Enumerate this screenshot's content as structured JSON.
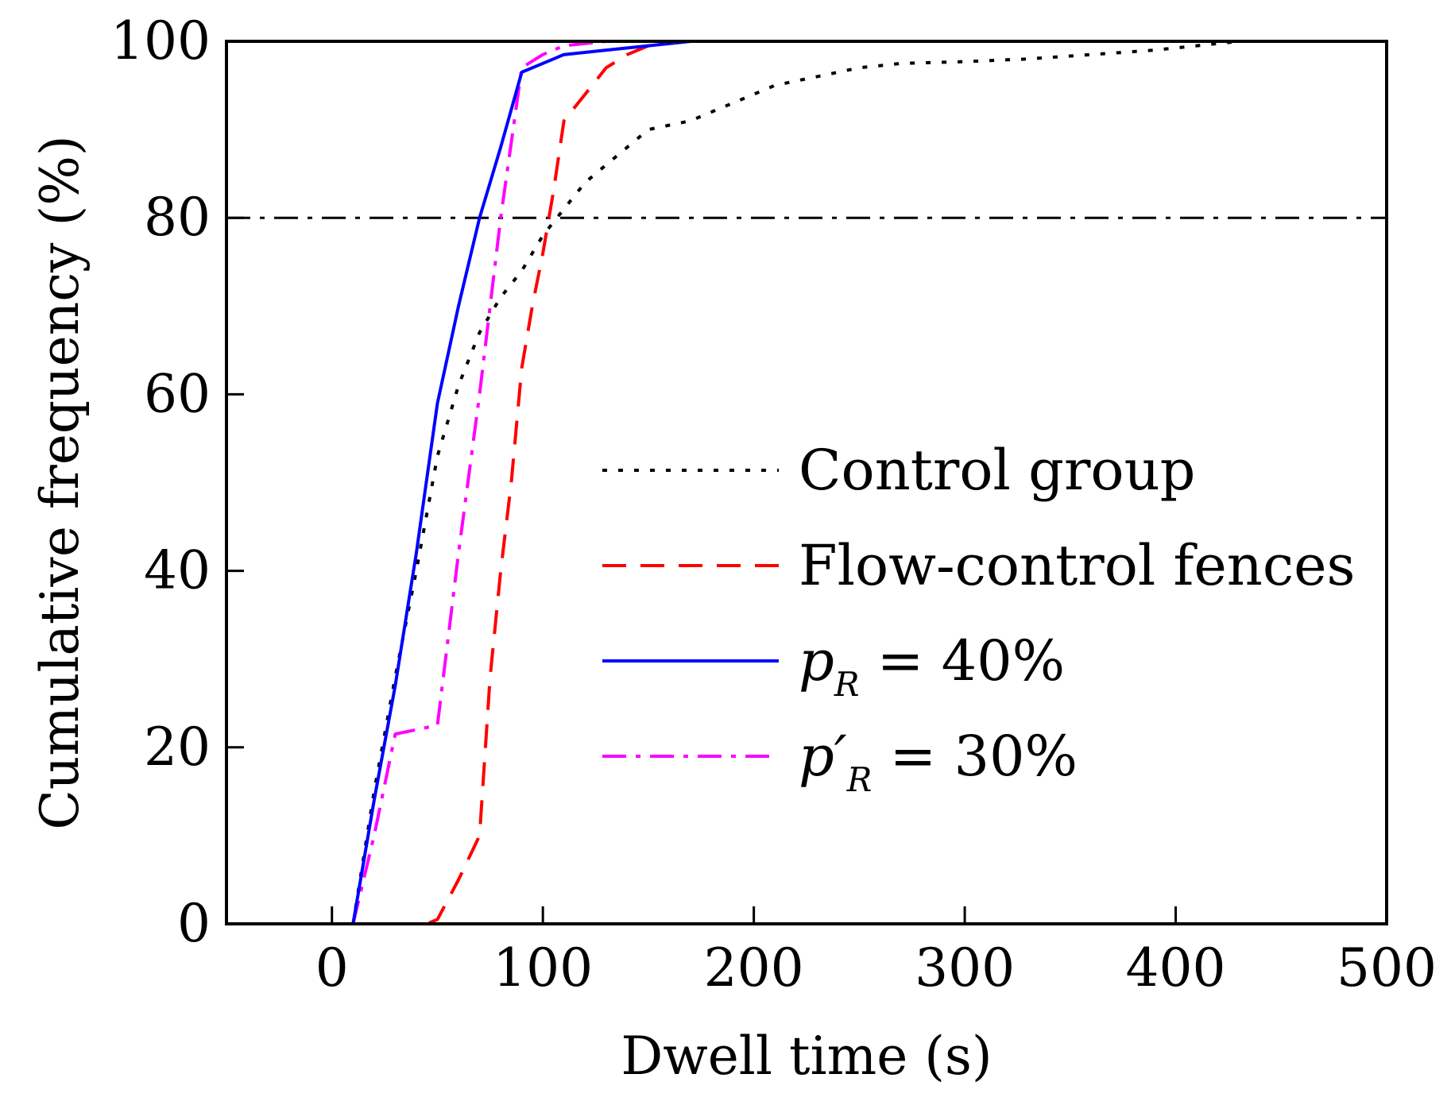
{
  "chart_data": {
    "type": "line",
    "title": "",
    "xlabel": "Dwell time (s)",
    "ylabel": "Cumulative frequency (%)",
    "xlim": [
      -50,
      500
    ],
    "ylim": [
      0,
      100
    ],
    "xticks": [
      0,
      100,
      200,
      300,
      400,
      500
    ],
    "yticks": [
      0,
      20,
      40,
      60,
      80,
      100
    ],
    "grid": false,
    "legend_position": "center-right",
    "reference_line": {
      "y": 80,
      "style": "dash-dot",
      "color": "#000000"
    },
    "series": [
      {
        "name": "Control group",
        "style": "dotted",
        "color": "#000000",
        "x": [
          10,
          20,
          30,
          40,
          50,
          60,
          70,
          80,
          90,
          100,
          110,
          120,
          130,
          140,
          150,
          170,
          190,
          210,
          230,
          250,
          270,
          300,
          330,
          360,
          390,
          410,
          430
        ],
        "y": [
          0,
          15,
          28,
          40,
          53,
          61,
          67,
          71,
          74,
          78,
          81,
          84,
          86,
          88,
          90,
          91,
          93,
          95,
          96,
          97,
          97.5,
          97.7,
          98,
          98.5,
          99,
          99.5,
          100
        ]
      },
      {
        "name": "Flow-control fences",
        "style": "dashed",
        "color": "#ff0000",
        "x": [
          10,
          30,
          45,
          50,
          60,
          70,
          75,
          80,
          85,
          90,
          95,
          100,
          105,
          110,
          120,
          130,
          140,
          150,
          170,
          200,
          250,
          300,
          350,
          400,
          430
        ],
        "y": [
          0,
          0,
          0,
          0.5,
          5,
          10,
          28,
          40,
          50,
          63,
          70,
          76,
          83,
          91,
          94,
          97,
          98.5,
          99.5,
          100,
          100,
          100,
          100,
          100,
          100,
          100
        ]
      },
      {
        "name": "p_R = 40%",
        "label_html": "p<sub>R</sub> = 40%",
        "style": "solid",
        "color": "#0000ff",
        "x": [
          10,
          20,
          30,
          40,
          50,
          60,
          70,
          80,
          90,
          100,
          110,
          130,
          150,
          170,
          200,
          250,
          300,
          350,
          400,
          430
        ],
        "y": [
          0,
          14,
          27,
          42,
          59,
          70,
          80,
          88,
          96.5,
          97.5,
          98.5,
          99,
          99.5,
          100,
          100,
          100,
          100,
          100,
          100,
          100
        ]
      },
      {
        "name": "p'_R = 30%",
        "label_html": "p′<sub>R</sub> = 30%",
        "style": "dash-dot",
        "color": "#ff00ff",
        "x": [
          10,
          20,
          30,
          40,
          50,
          60,
          70,
          80,
          90,
          100,
          110,
          130,
          150,
          170,
          200,
          250,
          300,
          350,
          400,
          430
        ],
        "y": [
          0,
          10,
          21.5,
          22,
          22.5,
          42,
          60,
          80,
          97,
          98.5,
          99.5,
          100,
          100,
          100,
          100,
          100,
          100,
          100,
          100,
          100
        ]
      }
    ],
    "legend": {
      "entries": [
        {
          "main": "Control group",
          "sub": ""
        },
        {
          "main": "Flow-control fences",
          "sub": ""
        },
        {
          "main": "p",
          "sub": "R",
          "suffix": " = 40%"
        },
        {
          "main": "p′",
          "sub": "R",
          "suffix": " = 30%"
        }
      ]
    }
  }
}
